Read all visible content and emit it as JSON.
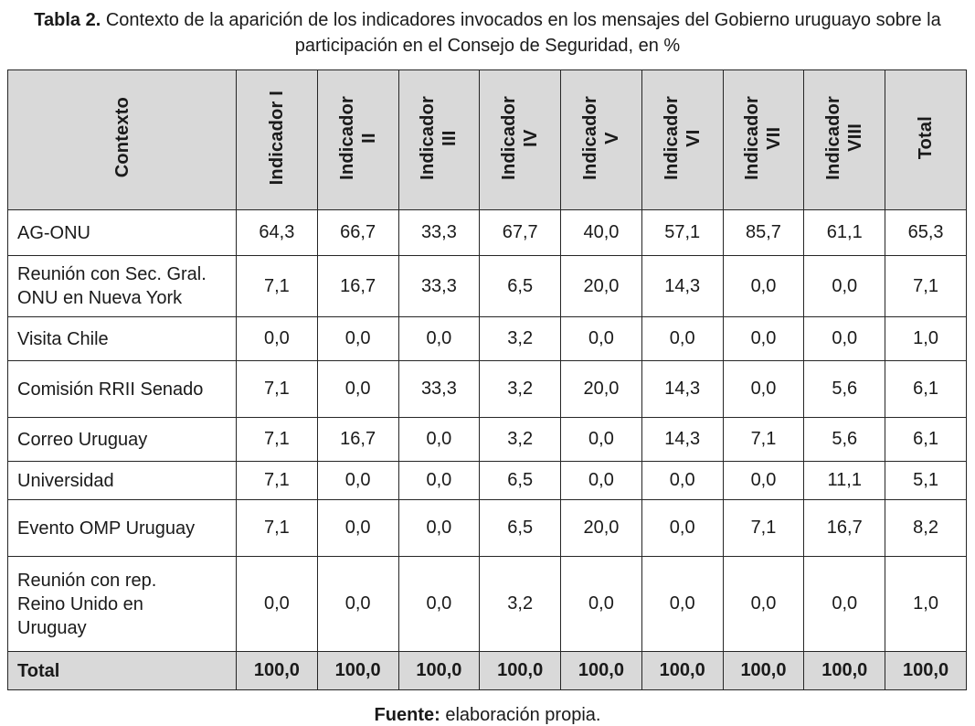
{
  "title": {
    "label": "Tabla 2.",
    "text": "Contexto de la aparición de los indicadores invocados en los mensajes del Gobierno uruguayo sobre la participación en el Consejo de Seguridad, en %"
  },
  "table": {
    "context_header": "Contexto",
    "columns": [
      "Indicador I",
      "Indicador\nII",
      "Indicador\nIII",
      "Indicador\nIV",
      "Indicador\nV",
      "Indicador\nVI",
      "Indicador\nVII",
      "Indicador\nVIII",
      "Total"
    ],
    "rows": [
      {
        "context": "AG-ONU",
        "values": [
          "64,3",
          "66,7",
          "33,3",
          "67,7",
          "40,0",
          "57,1",
          "85,7",
          "61,1",
          "65,3"
        ]
      },
      {
        "context": "Reunión con Sec. Gral.\nONU en Nueva York",
        "values": [
          "7,1",
          "16,7",
          "33,3",
          "6,5",
          "20,0",
          "14,3",
          "0,0",
          "0,0",
          "7,1"
        ]
      },
      {
        "context": "Visita Chile",
        "values": [
          "0,0",
          "0,0",
          "0,0",
          "3,2",
          "0,0",
          "0,0",
          "0,0",
          "0,0",
          "1,0"
        ]
      },
      {
        "context": "Comisión RRII Senado",
        "values": [
          "7,1",
          "0,0",
          "33,3",
          "3,2",
          "20,0",
          "14,3",
          "0,0",
          "5,6",
          "6,1"
        ]
      },
      {
        "context": "Correo Uruguay",
        "values": [
          "7,1",
          "16,7",
          "0,0",
          "3,2",
          "0,0",
          "14,3",
          "7,1",
          "5,6",
          "6,1"
        ]
      },
      {
        "context": "Universidad",
        "values": [
          "7,1",
          "0,0",
          "0,0",
          "6,5",
          "0,0",
          "0,0",
          "0,0",
          "11,1",
          "5,1"
        ]
      },
      {
        "context": "Evento OMP Uruguay",
        "values": [
          "7,1",
          "0,0",
          "0,0",
          "6,5",
          "20,0",
          "0,0",
          "7,1",
          "16,7",
          "8,2"
        ]
      },
      {
        "context": "Reunión con rep.\nReino Unido en\nUruguay",
        "values": [
          "0,0",
          "0,0",
          "0,0",
          "3,2",
          "0,0",
          "0,0",
          "0,0",
          "0,0",
          "1,0"
        ]
      }
    ],
    "total_row": {
      "context": "Total",
      "values": [
        "100,0",
        "100,0",
        "100,0",
        "100,0",
        "100,0",
        "100,0",
        "100,0",
        "100,0",
        "100,0"
      ]
    }
  },
  "footer": {
    "label": "Fuente:",
    "text": "elaboración propia."
  },
  "colors": {
    "header_bg": "#d9d9d9",
    "border": "#262626",
    "text": "#1a1a1a"
  }
}
